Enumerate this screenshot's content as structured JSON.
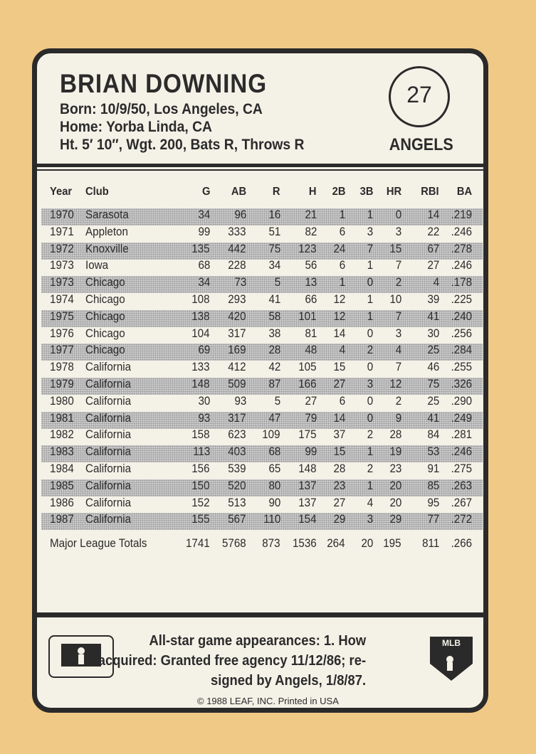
{
  "header": {
    "name": "BRIAN DOWNING",
    "born": "Born: 10/9/50, Los Angeles, CA",
    "home": "Home: Yorba Linda, CA",
    "physical": "Ht. 5′ 10″, Wgt. 200, Bats R, Throws R",
    "number": "27",
    "team": "ANGELS"
  },
  "table": {
    "columns": [
      "Year",
      "Club",
      "G",
      "AB",
      "R",
      "H",
      "2B",
      "3B",
      "HR",
      "RBI",
      "BA"
    ],
    "rows": [
      [
        "1970",
        "Sarasota",
        "34",
        "96",
        "16",
        "21",
        "1",
        "1",
        "0",
        "14",
        ".219"
      ],
      [
        "1971",
        "Appleton",
        "99",
        "333",
        "51",
        "82",
        "6",
        "3",
        "3",
        "22",
        ".246"
      ],
      [
        "1972",
        "Knoxville",
        "135",
        "442",
        "75",
        "123",
        "24",
        "7",
        "15",
        "67",
        ".278"
      ],
      [
        "1973",
        "Iowa",
        "68",
        "228",
        "34",
        "56",
        "6",
        "1",
        "7",
        "27",
        ".246"
      ],
      [
        "1973",
        "Chicago",
        "34",
        "73",
        "5",
        "13",
        "1",
        "0",
        "2",
        "4",
        ".178"
      ],
      [
        "1974",
        "Chicago",
        "108",
        "293",
        "41",
        "66",
        "12",
        "1",
        "10",
        "39",
        ".225"
      ],
      [
        "1975",
        "Chicago",
        "138",
        "420",
        "58",
        "101",
        "12",
        "1",
        "7",
        "41",
        ".240"
      ],
      [
        "1976",
        "Chicago",
        "104",
        "317",
        "38",
        "81",
        "14",
        "0",
        "3",
        "30",
        ".256"
      ],
      [
        "1977",
        "Chicago",
        "69",
        "169",
        "28",
        "48",
        "4",
        "2",
        "4",
        "25",
        ".284"
      ],
      [
        "1978",
        "California",
        "133",
        "412",
        "42",
        "105",
        "15",
        "0",
        "7",
        "46",
        ".255"
      ],
      [
        "1979",
        "California",
        "148",
        "509",
        "87",
        "166",
        "27",
        "3",
        "12",
        "75",
        ".326"
      ],
      [
        "1980",
        "California",
        "30",
        "93",
        "5",
        "27",
        "6",
        "0",
        "2",
        "25",
        ".290"
      ],
      [
        "1981",
        "California",
        "93",
        "317",
        "47",
        "79",
        "14",
        "0",
        "9",
        "41",
        ".249"
      ],
      [
        "1982",
        "California",
        "158",
        "623",
        "109",
        "175",
        "37",
        "2",
        "28",
        "84",
        ".281"
      ],
      [
        "1983",
        "California",
        "113",
        "403",
        "68",
        "99",
        "15",
        "1",
        "19",
        "53",
        ".246"
      ],
      [
        "1984",
        "California",
        "156",
        "539",
        "65",
        "148",
        "28",
        "2",
        "23",
        "91",
        ".275"
      ],
      [
        "1985",
        "California",
        "150",
        "520",
        "80",
        "137",
        "23",
        "1",
        "20",
        "85",
        ".263"
      ],
      [
        "1986",
        "California",
        "152",
        "513",
        "90",
        "137",
        "27",
        "4",
        "20",
        "95",
        ".267"
      ],
      [
        "1987",
        "California",
        "155",
        "567",
        "110",
        "154",
        "29",
        "3",
        "29",
        "77",
        ".272"
      ]
    ],
    "totals": [
      "Major League Totals",
      "1741",
      "5768",
      "873",
      "1536",
      "264",
      "20",
      "195",
      "811",
      ".266"
    ]
  },
  "footer": {
    "lines": [
      "All-star game appearances: 1. How",
      "acquired: Granted free agency 11/12/86; re-",
      "signed by Angels, 1/8/87."
    ],
    "copyright": "© 1988 LEAF, INC.   Printed in USA",
    "logo": "MLB"
  }
}
